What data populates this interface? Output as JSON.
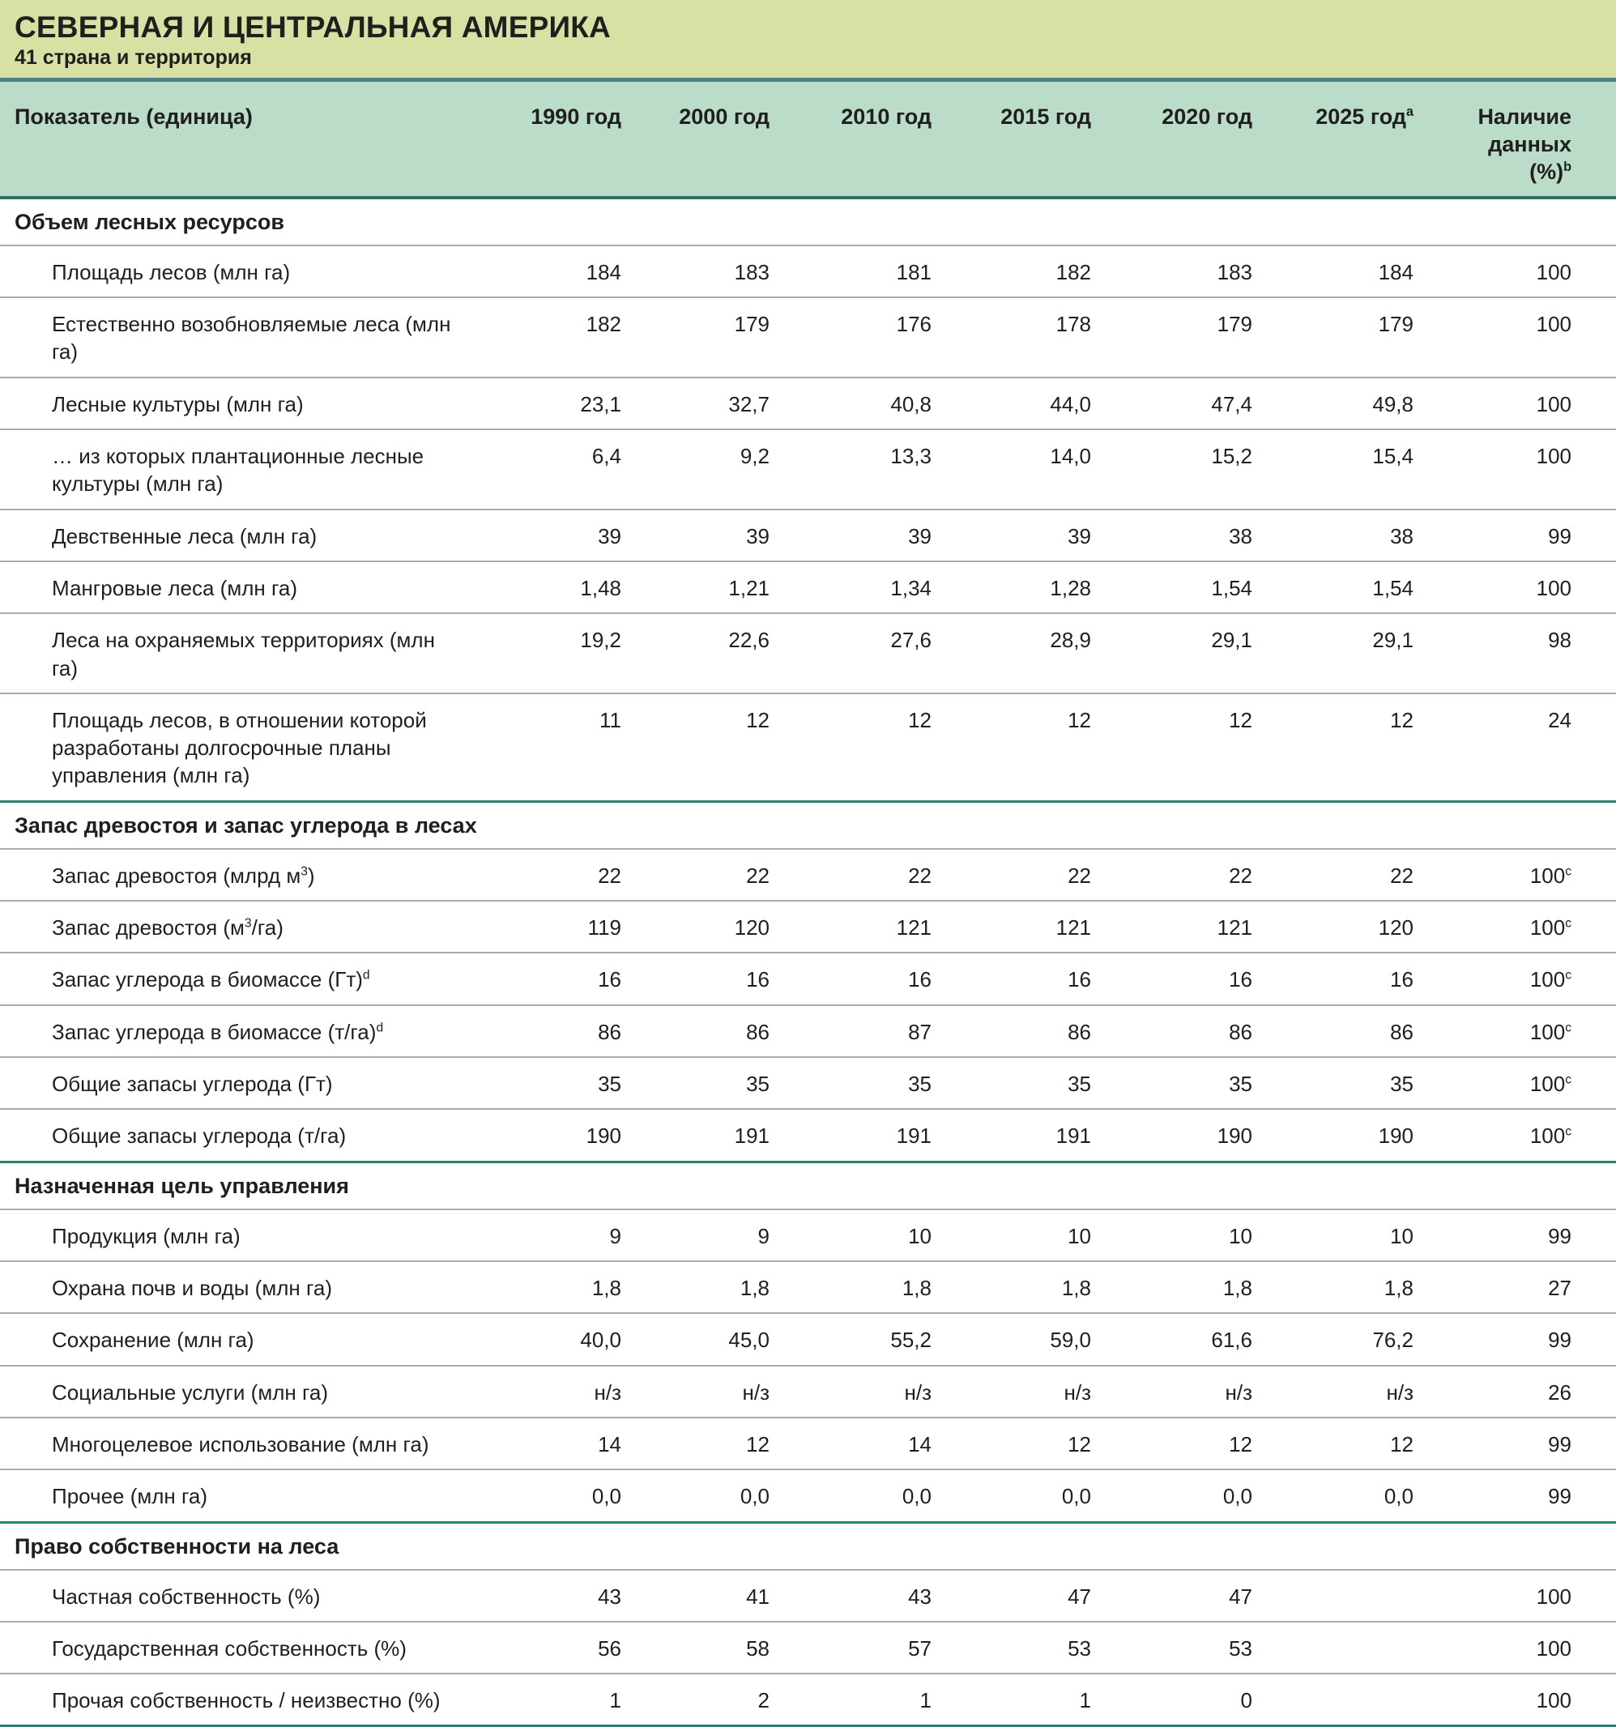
{
  "title": "СЕВЕРНАЯ И ЦЕНТРАЛЬНАЯ АМЕРИКА",
  "subtitle": "41 страна и территория",
  "colors": {
    "title_band": "#d9e0a4",
    "band_divider_blue": "#4a7f8e",
    "header_background": "#bcdcca",
    "header_rule_teal": "#346e60",
    "section_rule_teal": "#2e8070",
    "row_rule_gray": "#a8aaad",
    "text": "#1f1f1d"
  },
  "table": {
    "columns": [
      "Показатель (единица)",
      "1990 год",
      "2000 год",
      "2010 год",
      "2015 год",
      "2020 год",
      "2025 год^a",
      [
        "Наличие",
        "данных",
        "(%)^b"
      ]
    ],
    "sections": [
      {
        "heading": "Объем лесных ресурсов",
        "rows": [
          {
            "label": "Площадь лесов (млн га)",
            "values": [
              "184",
              "183",
              "181",
              "182",
              "183",
              "184",
              "100"
            ]
          },
          {
            "label": "Естественно возобновляемые леса (млн га)",
            "values": [
              "182",
              "179",
              "176",
              "178",
              "179",
              "179",
              "100"
            ]
          },
          {
            "label": "Лесные культуры (млн га)",
            "values": [
              "23,1",
              "32,7",
              "40,8",
              "44,0",
              "47,4",
              "49,8",
              "100"
            ]
          },
          {
            "label": "… из которых плантационные лесные культуры (млн га)",
            "values": [
              "6,4",
              "9,2",
              "13,3",
              "14,0",
              "15,2",
              "15,4",
              "100"
            ]
          },
          {
            "label": "Девственные леса (млн га)",
            "values": [
              "39",
              "39",
              "39",
              "39",
              "38",
              "38",
              "99"
            ]
          },
          {
            "label": "Мангровые леса (млн га)",
            "values": [
              "1,48",
              "1,21",
              "1,34",
              "1,28",
              "1,54",
              "1,54",
              "100"
            ]
          },
          {
            "label": "Леса на охраняемых территориях (млн га)",
            "values": [
              "19,2",
              "22,6",
              "27,6",
              "28,9",
              "29,1",
              "29,1",
              "98"
            ]
          },
          {
            "label": "Площадь лесов, в отношении которой разработаны долгосрочные планы управления (млн га)",
            "values": [
              "11",
              "12",
              "12",
              "12",
              "12",
              "12",
              "24"
            ]
          }
        ]
      },
      {
        "heading": "Запас древостоя и запас углерода в лесах",
        "rows": [
          {
            "label": "Запас древостоя (млрд м^3)",
            "values": [
              "22",
              "22",
              "22",
              "22",
              "22",
              "22",
              "100^c"
            ]
          },
          {
            "label": "Запас древостоя (м^3/га)",
            "values": [
              "119",
              "120",
              "121",
              "121",
              "121",
              "120",
              "100^c"
            ]
          },
          {
            "label": "Запас углерода в биомассе (Гт)^d",
            "values": [
              "16",
              "16",
              "16",
              "16",
              "16",
              "16",
              "100^c"
            ]
          },
          {
            "label": "Запас углерода в биомассе (т/га)^d",
            "values": [
              "86",
              "86",
              "87",
              "86",
              "86",
              "86",
              "100^c"
            ]
          },
          {
            "label": "Общие запасы углерода (Гт)",
            "values": [
              "35",
              "35",
              "35",
              "35",
              "35",
              "35",
              "100^c"
            ]
          },
          {
            "label": "Общие запасы углерода (т/га)",
            "values": [
              "190",
              "191",
              "191",
              "191",
              "190",
              "190",
              "100^c"
            ]
          }
        ]
      },
      {
        "heading": "Назначенная цель управления",
        "rows": [
          {
            "label": "Продукция (млн га)",
            "values": [
              "9",
              "9",
              "10",
              "10",
              "10",
              "10",
              "99"
            ]
          },
          {
            "label": "Охрана почв и воды (млн га)",
            "values": [
              "1,8",
              "1,8",
              "1,8",
              "1,8",
              "1,8",
              "1,8",
              "27"
            ]
          },
          {
            "label": "Сохранение (млн га)",
            "values": [
              "40,0",
              "45,0",
              "55,2",
              "59,0",
              "61,6",
              "76,2",
              "99"
            ]
          },
          {
            "label": "Социальные услуги (млн га)",
            "values": [
              "н/з",
              "н/з",
              "н/з",
              "н/з",
              "н/з",
              "н/з",
              "26"
            ]
          },
          {
            "label": "Многоцелевое использование (млн га)",
            "values": [
              "14",
              "12",
              "14",
              "12",
              "12",
              "12",
              "99"
            ]
          },
          {
            "label": "Прочее (млн га)",
            "values": [
              "0,0",
              "0,0",
              "0,0",
              "0,0",
              "0,0",
              "0,0",
              "99"
            ]
          }
        ]
      },
      {
        "heading": "Право собственности на леса",
        "rows": [
          {
            "label": "Частная собственность (%)",
            "values": [
              "43",
              "41",
              "43",
              "47",
              "47",
              "",
              "100"
            ]
          },
          {
            "label": "Государственная собственность (%)",
            "values": [
              "56",
              "58",
              "57",
              "53",
              "53",
              "",
              "100"
            ]
          },
          {
            "label": "Прочая собственность / неизвестно (%)",
            "values": [
              "1",
              "2",
              "1",
              "1",
              "0",
              "",
              "100"
            ]
          }
        ]
      }
    ]
  }
}
